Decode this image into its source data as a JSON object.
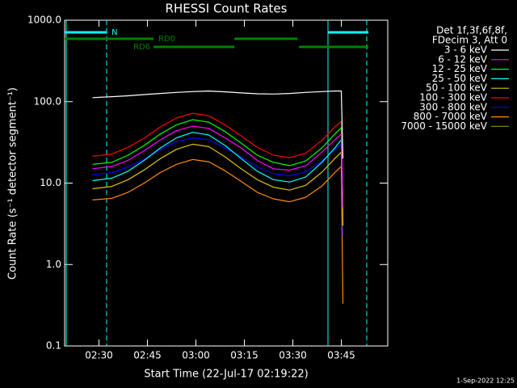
{
  "chart_data": {
    "type": "line",
    "title": "RHESSI Count Rates",
    "xlabel": "Start Time (22-Jul-17 02:19:22)",
    "ylabel": "Count Rate (s⁻¹ detector segment⁻¹)",
    "legend_header": [
      "Det 1f,3f,6f,8f,",
      "FDecim 3, Att 0"
    ],
    "footer": "1-Sep-2022 12:25",
    "log_y": true,
    "xlim": [
      139.37,
      239.37
    ],
    "xticks": [
      {
        "value": 150,
        "label": "02:30"
      },
      {
        "value": 165,
        "label": "02:45"
      },
      {
        "value": 180,
        "label": "03:00"
      },
      {
        "value": 195,
        "label": "03:15"
      },
      {
        "value": 210,
        "label": "03:30"
      },
      {
        "value": 225,
        "label": "03:45"
      }
    ],
    "ylim": [
      0.1,
      1000
    ],
    "yticks": [
      0.1,
      {
        "value": 1,
        "label": "1.0"
      },
      {
        "value": 10,
        "label": "10.0"
      },
      {
        "value": 100,
        "label": "100.0"
      },
      {
        "value": 1000,
        "label": "1000.0"
      }
    ],
    "x": [
      148,
      154,
      159,
      164,
      169,
      174,
      179,
      184,
      189,
      194,
      199,
      204,
      209,
      214,
      219,
      223,
      225,
      225.5
    ],
    "series": [
      {
        "name": "3 - 6 keV",
        "color": "#000000",
        "legend_color": "#ffffff",
        "values": [
          112,
          115,
          118,
          122,
          126,
          130,
          133,
          135,
          132,
          128,
          125,
          124,
          126,
          130,
          133,
          135,
          135,
          20
        ]
      },
      {
        "name": "6 - 12 keV",
        "color": "#ff00ff",
        "values": [
          15,
          16,
          19,
          25,
          34,
          44,
          50,
          47,
          36,
          27,
          19,
          15,
          14.4,
          16.3,
          24,
          34,
          40,
          5
        ]
      },
      {
        "name": "12 - 25 keV",
        "color": "#00ff00",
        "values": [
          17,
          18,
          22,
          29,
          40,
          52,
          60,
          56,
          43,
          31,
          22,
          18,
          16.4,
          18.7,
          27,
          40,
          48,
          5
        ]
      },
      {
        "name": "25 - 50 keV",
        "color": "#00ffff",
        "values": [
          10.7,
          11.5,
          14,
          19,
          27,
          36,
          42,
          39,
          29,
          20,
          14,
          11,
          10.3,
          11.9,
          18,
          27,
          34,
          5
        ]
      },
      {
        "name": "50 - 100 keV",
        "color": "#e0c000",
        "values": [
          8.5,
          9.1,
          11,
          14.5,
          20,
          26,
          30,
          28,
          21,
          15,
          11,
          8.9,
          8.2,
          9.4,
          13.6,
          20,
          24,
          3
        ]
      },
      {
        "name": "100 - 300 keV",
        "color": "#ff0000",
        "values": [
          21.3,
          22.7,
          27.5,
          35.6,
          49,
          63,
          72,
          67,
          52,
          38,
          27.5,
          22,
          20.5,
          23.3,
          33.4,
          49,
          57,
          4
        ]
      },
      {
        "name": "300 - 800 keV",
        "color": "#0000ff",
        "values": [
          12.7,
          13.4,
          15.8,
          19.6,
          26,
          32,
          36,
          34,
          27,
          21,
          15.8,
          13,
          12.3,
          13.7,
          18.6,
          26,
          30,
          2.2
        ]
      },
      {
        "name": "800 - 7000 keV",
        "color": "#ff8c00",
        "values": [
          6.2,
          6.5,
          7.7,
          10,
          13.5,
          17,
          19.5,
          18.3,
          14.2,
          10.5,
          7.7,
          6.4,
          5.9,
          6.7,
          9.2,
          13.5,
          16,
          0.33
        ]
      },
      {
        "name": "7000 - 15000 keV",
        "color": "#808000",
        "values": [
          null,
          null,
          null,
          null,
          null,
          null,
          null,
          null,
          null,
          null,
          null,
          null,
          null,
          null,
          null,
          null,
          null,
          null
        ]
      }
    ],
    "flags": [
      {
        "label": "N",
        "color": "#00ffff",
        "intervals": [
          [
            139.37,
            152.4
          ],
          [
            220.9,
            233.4
          ]
        ]
      },
      {
        "label": "RD0",
        "color": "#008000",
        "intervals": [
          [
            139.37,
            166.9
          ],
          [
            191.9,
            211.4
          ]
        ]
      },
      {
        "label": "RD6",
        "color": "#008000",
        "intervals": [
          [
            166.9,
            191.9
          ],
          [
            211.9,
            233.4
          ]
        ]
      }
    ],
    "markers": [
      {
        "x": 139.87,
        "color": "#00ffff",
        "dashed": false
      },
      {
        "x": 152.37,
        "color": "#00ffff",
        "dashed": true
      },
      {
        "x": 220.87,
        "color": "#00ffff",
        "dashed": false
      },
      {
        "x": 232.87,
        "color": "#00ffff",
        "dashed": true
      }
    ]
  }
}
